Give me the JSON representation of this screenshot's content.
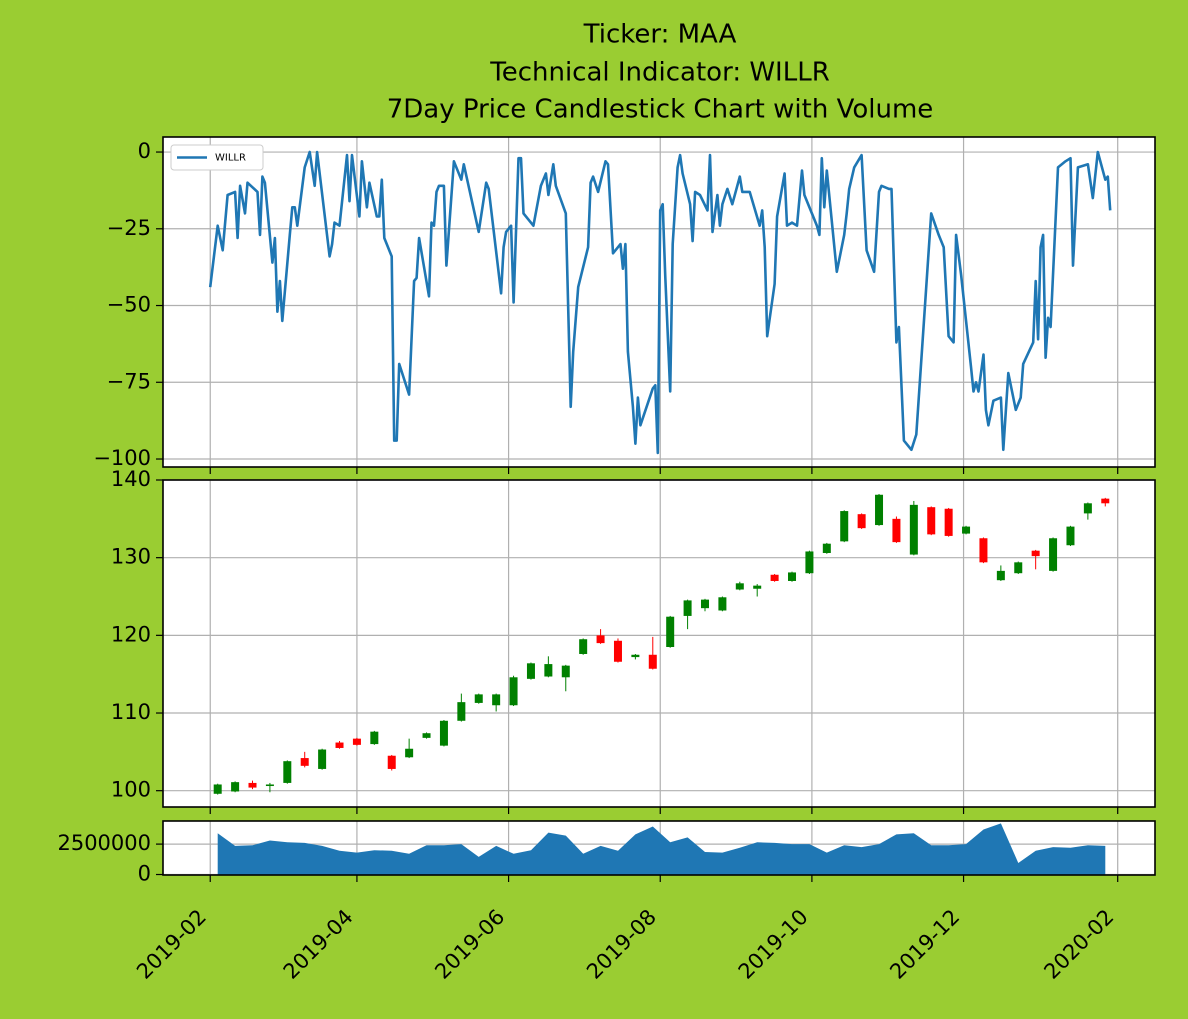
{
  "title": [
    "Ticker: MAA",
    "Technical Indicator: WILLR",
    "7Day Price Candlestick Chart with Volume"
  ],
  "chart_data": [
    {
      "type": "line",
      "grid": true,
      "legend": "upper left",
      "xlim": [
        "2019-01-13",
        "2020-02-16"
      ],
      "xticks": [
        "2019-02",
        "2019-04",
        "2019-06",
        "2019-08",
        "2019-10",
        "2019-12",
        "2020-02"
      ],
      "ylim": [
        -102.6,
        4.9
      ],
      "yticks": [
        {
          "value": -100,
          "label": "−100"
        },
        {
          "value": -75,
          "label": "−75"
        },
        {
          "value": -50,
          "label": "−50"
        },
        {
          "value": -25,
          "label": "−25"
        },
        0
      ],
      "series": [
        {
          "name": "WILLR",
          "color": "#1f77b4",
          "x": [
            "2019-02-01",
            "2019-02-04",
            "2019-02-06",
            "2019-02-08",
            "2019-02-11",
            "2019-02-12",
            "2019-02-13",
            "2019-02-15",
            "2019-02-16",
            "2019-02-20",
            "2019-02-21",
            "2019-02-22",
            "2019-02-23",
            "2019-02-26",
            "2019-02-27",
            "2019-02-28",
            "2019-03-01",
            "2019-03-02",
            "2019-03-05",
            "2019-03-06",
            "2019-03-07",
            "2019-03-08",
            "2019-03-11",
            "2019-03-13",
            "2019-03-15",
            "2019-03-16",
            "2019-03-21",
            "2019-03-22",
            "2019-03-23",
            "2019-03-25",
            "2019-03-28",
            "2019-03-29",
            "2019-03-30",
            "2019-04-02",
            "2019-04-03",
            "2019-04-05",
            "2019-04-06",
            "2019-04-09",
            "2019-04-10",
            "2019-04-11",
            "2019-04-12",
            "2019-04-15",
            "2019-04-16",
            "2019-04-17",
            "2019-04-18",
            "2019-04-22",
            "2019-04-24",
            "2019-04-25",
            "2019-04-26",
            "2019-04-30",
            "2019-05-01",
            "2019-05-02",
            "2019-05-03",
            "2019-05-04",
            "2019-05-06",
            "2019-05-07",
            "2019-05-10",
            "2019-05-13",
            "2019-05-14",
            "2019-05-20",
            "2019-05-23",
            "2019-05-24",
            "2019-05-29",
            "2019-05-30",
            "2019-05-31",
            "2019-06-02",
            "2019-06-03",
            "2019-06-05",
            "2019-06-06",
            "2019-06-07",
            "2019-06-11",
            "2019-06-14",
            "2019-06-16",
            "2019-06-17",
            "2019-06-19",
            "2019-06-20",
            "2019-06-24",
            "2019-06-26",
            "2019-06-27",
            "2019-06-29",
            "2019-07-03",
            "2019-07-04",
            "2019-07-05",
            "2019-07-07",
            "2019-07-10",
            "2019-07-11",
            "2019-07-13",
            "2019-07-16",
            "2019-07-17",
            "2019-07-18",
            "2019-07-19",
            "2019-07-21",
            "2019-07-22",
            "2019-07-23",
            "2019-07-24",
            "2019-07-29",
            "2019-07-30",
            "2019-07-31",
            "2019-08-01",
            "2019-08-02",
            "2019-08-03",
            "2019-08-05",
            "2019-08-06",
            "2019-08-08",
            "2019-08-09",
            "2019-08-10",
            "2019-08-13",
            "2019-08-14",
            "2019-08-15",
            "2019-08-17",
            "2019-08-20",
            "2019-08-21",
            "2019-08-22",
            "2019-08-24",
            "2019-08-25",
            "2019-08-26",
            "2019-08-28",
            "2019-08-30",
            "2019-09-02",
            "2019-09-03",
            "2019-09-06",
            "2019-09-10",
            "2019-09-11",
            "2019-09-12",
            "2019-09-13",
            "2019-09-16",
            "2019-09-17",
            "2019-09-20",
            "2019-09-21",
            "2019-09-23",
            "2019-09-25",
            "2019-09-27",
            "2019-09-28",
            "2019-10-01",
            "2019-10-03",
            "2019-10-04",
            "2019-10-05",
            "2019-10-06",
            "2019-10-07",
            "2019-10-11",
            "2019-10-14",
            "2019-10-15",
            "2019-10-16",
            "2019-10-18",
            "2019-10-21",
            "2019-10-23",
            "2019-10-26",
            "2019-10-28",
            "2019-10-29",
            "2019-11-01",
            "2019-11-02",
            "2019-11-04",
            "2019-11-05",
            "2019-11-07",
            "2019-11-10",
            "2019-11-12",
            "2019-11-18",
            "2019-11-21",
            "2019-11-23",
            "2019-11-25",
            "2019-11-27",
            "2019-11-28",
            "2019-11-30",
            "2019-12-04",
            "2019-12-05",
            "2019-12-06",
            "2019-12-07",
            "2019-12-09",
            "2019-12-10",
            "2019-12-11",
            "2019-12-13",
            "2019-12-16",
            "2019-12-17",
            "2019-12-19",
            "2019-12-22",
            "2019-12-24",
            "2019-12-25",
            "2019-12-29",
            "2019-12-30",
            "2019-12-31",
            "2020-01-01",
            "2020-01-02",
            "2020-01-03",
            "2020-01-04",
            "2020-01-05",
            "2020-01-08",
            "2020-01-11",
            "2020-01-13",
            "2020-01-14",
            "2020-01-16",
            "2020-01-20",
            "2020-01-22",
            "2020-01-24",
            "2020-01-27",
            "2020-01-28",
            "2020-01-29"
          ],
          "values": [
            -44,
            -24,
            -32,
            -14,
            -13,
            -28,
            -11,
            -20,
            -10,
            -13,
            -27,
            -8,
            -10,
            -36,
            -28,
            -52,
            -42,
            -55,
            -27,
            -18,
            -18,
            -24,
            -5,
            0,
            -11,
            0,
            -34,
            -30,
            -23,
            -24,
            -1,
            -16,
            -1,
            -21,
            -3,
            -18,
            -10,
            -21,
            -21,
            -9,
            -28,
            -34,
            -94,
            -94,
            -69,
            -79,
            -42,
            -41,
            -28,
            -47,
            -23,
            -24,
            -13,
            -11,
            -11,
            -37,
            -3,
            -9,
            -4,
            -26,
            -10,
            -12,
            -46,
            -31,
            -26,
            -24,
            -49,
            -2,
            -2,
            -20,
            -24,
            -11,
            -7,
            -14,
            -4,
            -11,
            -20,
            -83,
            -65,
            -44,
            -31,
            -10,
            -8,
            -13,
            -3,
            -4,
            -33,
            -30,
            -38,
            -30,
            -65,
            -83,
            -95,
            -80,
            -89,
            -77,
            -76,
            -98,
            -19,
            -17,
            -40,
            -78,
            -30,
            -5,
            -1,
            -7,
            -17,
            -29,
            -13,
            -14,
            -19,
            -1,
            -26,
            -14,
            -24,
            -17,
            -12,
            -17,
            -8,
            -13,
            -13,
            -24,
            -19,
            -31,
            -60,
            -43,
            -21,
            -7,
            -24,
            -23,
            -24,
            -6,
            -14,
            -20,
            -24,
            -27,
            -2,
            -18,
            -6,
            -39,
            -27,
            -20,
            -12,
            -5,
            -1,
            -32,
            -39,
            -13,
            -11,
            -12,
            -12,
            -62,
            -57,
            -94,
            -97,
            -92,
            -20,
            -27,
            -31,
            -60,
            -62,
            -27,
            -40,
            -70,
            -78,
            -75,
            -78,
            -66,
            -84,
            -89,
            -81,
            -80,
            -97,
            -72,
            -84,
            -80,
            -69,
            -62,
            -42,
            -61,
            -31,
            -27,
            -67,
            -54,
            -57,
            -5,
            -3,
            -2,
            -37,
            -5,
            -4,
            -15,
            0,
            -9,
            -8,
            -19
          ]
        }
      ]
    },
    {
      "type": "candlestick",
      "grid": true,
      "up_color": "green",
      "down_color": "red",
      "xlim": [
        "2019-01-13",
        "2020-02-16"
      ],
      "xticks": [
        "2019-02",
        "2019-04",
        "2019-06",
        "2019-08",
        "2019-10",
        "2019-12",
        "2020-02"
      ],
      "ylim": [
        97.9,
        140
      ],
      "yticks": [
        100,
        110,
        120,
        130,
        140
      ],
      "x": [
        "2019-02-04",
        "2019-02-11",
        "2019-02-18",
        "2019-02-25",
        "2019-03-04",
        "2019-03-11",
        "2019-03-18",
        "2019-03-25",
        "2019-04-01",
        "2019-04-08",
        "2019-04-15",
        "2019-04-22",
        "2019-04-29",
        "2019-05-06",
        "2019-05-13",
        "2019-05-20",
        "2019-05-27",
        "2019-06-03",
        "2019-06-10",
        "2019-06-17",
        "2019-06-24",
        "2019-07-01",
        "2019-07-08",
        "2019-07-15",
        "2019-07-22",
        "2019-07-29",
        "2019-08-05",
        "2019-08-12",
        "2019-08-19",
        "2019-08-26",
        "2019-09-02",
        "2019-09-09",
        "2019-09-16",
        "2019-09-23",
        "2019-09-30",
        "2019-10-07",
        "2019-10-14",
        "2019-10-21",
        "2019-10-28",
        "2019-11-04",
        "2019-11-11",
        "2019-11-18",
        "2019-11-25",
        "2019-12-02",
        "2019-12-09",
        "2019-12-16",
        "2019-12-23",
        "2019-12-30",
        "2020-01-06",
        "2020-01-13",
        "2020-01-20",
        "2020-01-27"
      ],
      "open": [
        99.6,
        99.9,
        101.0,
        100.6,
        101.0,
        104.2,
        102.8,
        106.2,
        106.7,
        106.0,
        104.5,
        104.3,
        106.8,
        105.8,
        109.0,
        111.3,
        111.0,
        111.0,
        114.4,
        114.7,
        114.6,
        117.6,
        120.0,
        119.3,
        117.2,
        117.5,
        118.5,
        122.5,
        123.5,
        123.2,
        125.9,
        126.0,
        127.8,
        127.0,
        128.0,
        130.6,
        132.1,
        135.6,
        134.2,
        135.0,
        130.4,
        136.5,
        136.3,
        133.1,
        132.5,
        127.1,
        128.0,
        130.9,
        128.3,
        131.6,
        135.7,
        137.6
      ],
      "high": [
        100.9,
        101.2,
        101.3,
        101.0,
        103.9,
        105.0,
        105.4,
        106.4,
        106.8,
        107.7,
        104.6,
        106.7,
        107.5,
        109.1,
        112.5,
        112.5,
        112.5,
        114.8,
        116.5,
        117.3,
        116.2,
        119.6,
        120.8,
        119.6,
        117.6,
        119.8,
        122.5,
        124.6,
        124.7,
        125.0,
        126.9,
        126.6,
        127.9,
        128.2,
        130.9,
        131.9,
        136.1,
        135.7,
        138.2,
        135.3,
        137.3,
        136.6,
        136.4,
        134.1,
        132.6,
        129.0,
        129.5,
        131.0,
        132.6,
        134.1,
        137.1,
        137.7
      ],
      "low": [
        99.5,
        99.8,
        100.2,
        99.8,
        100.9,
        103.0,
        102.7,
        105.4,
        105.8,
        105.9,
        102.6,
        104.2,
        106.7,
        105.7,
        108.9,
        111.2,
        110.2,
        110.9,
        114.3,
        114.6,
        112.8,
        117.5,
        118.9,
        116.5,
        116.9,
        115.6,
        118.4,
        120.8,
        123.1,
        123.1,
        125.8,
        125.0,
        126.9,
        126.9,
        127.9,
        130.5,
        132.0,
        133.7,
        134.1,
        131.9,
        130.3,
        132.9,
        132.7,
        133.0,
        129.3,
        127.0,
        127.9,
        128.5,
        128.2,
        131.5,
        134.9,
        136.6
      ],
      "close": [
        100.8,
        101.1,
        100.4,
        100.8,
        103.8,
        103.2,
        105.3,
        105.5,
        105.9,
        107.6,
        102.8,
        105.4,
        107.4,
        109.0,
        111.4,
        112.4,
        112.4,
        114.6,
        116.4,
        116.3,
        116.1,
        119.5,
        119.0,
        116.6,
        117.5,
        115.7,
        122.4,
        124.5,
        124.6,
        124.9,
        126.7,
        126.4,
        127.0,
        128.1,
        130.8,
        131.8,
        136.0,
        133.8,
        138.1,
        132.0,
        136.8,
        133.0,
        132.8,
        134.0,
        129.4,
        128.3,
        129.4,
        130.2,
        132.5,
        134.0,
        137.0,
        137.0
      ]
    },
    {
      "type": "area",
      "grid": true,
      "color": "#1f77b4",
      "xlim": [
        "2019-01-13",
        "2020-02-16"
      ],
      "xticks": [
        "2019-02",
        "2019-04",
        "2019-06",
        "2019-08",
        "2019-10",
        "2019-12",
        "2020-02"
      ],
      "ylim": [
        -40000,
        4400000
      ],
      "yticks": [
        0,
        2500000
      ],
      "x": [
        "2019-02-04",
        "2019-02-11",
        "2019-02-18",
        "2019-02-25",
        "2019-03-04",
        "2019-03-11",
        "2019-03-18",
        "2019-03-25",
        "2019-04-01",
        "2019-04-08",
        "2019-04-15",
        "2019-04-22",
        "2019-04-29",
        "2019-05-06",
        "2019-05-13",
        "2019-05-20",
        "2019-05-27",
        "2019-06-03",
        "2019-06-10",
        "2019-06-17",
        "2019-06-24",
        "2019-07-01",
        "2019-07-08",
        "2019-07-15",
        "2019-07-22",
        "2019-07-29",
        "2019-08-05",
        "2019-08-12",
        "2019-08-19",
        "2019-08-26",
        "2019-09-02",
        "2019-09-09",
        "2019-09-16",
        "2019-09-23",
        "2019-09-30",
        "2019-10-07",
        "2019-10-14",
        "2019-10-21",
        "2019-10-28",
        "2019-11-04",
        "2019-11-11",
        "2019-11-18",
        "2019-11-25",
        "2019-12-02",
        "2019-12-09",
        "2019-12-16",
        "2019-12-23",
        "2019-12-30",
        "2020-01-06",
        "2020-01-13",
        "2020-01-20",
        "2020-01-27"
      ],
      "values": [
        3400000,
        2350000,
        2400000,
        2800000,
        2650000,
        2600000,
        2350000,
        1950000,
        1800000,
        2000000,
        1950000,
        1700000,
        2400000,
        2400000,
        2500000,
        1450000,
        2350000,
        1700000,
        2000000,
        3450000,
        3200000,
        1700000,
        2350000,
        1950000,
        3300000,
        3950000,
        2650000,
        3050000,
        1850000,
        1800000,
        2200000,
        2650000,
        2600000,
        2500000,
        2500000,
        1800000,
        2400000,
        2250000,
        2500000,
        3300000,
        3400000,
        2400000,
        2400000,
        2500000,
        3700000,
        4200000,
        950000,
        1950000,
        2250000,
        2200000,
        2400000,
        2350000
      ]
    }
  ]
}
